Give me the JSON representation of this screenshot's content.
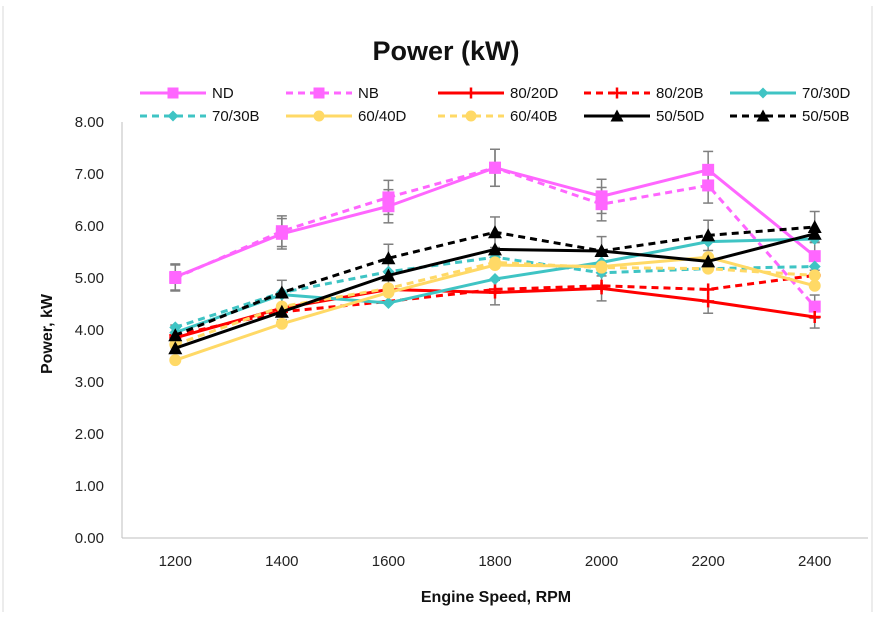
{
  "chart_data": {
    "type": "line",
    "title": "Power (kW)",
    "xlabel": "Engine Speed, RPM",
    "ylabel": "Power, kW",
    "x": [
      1200,
      1400,
      1600,
      1800,
      2000,
      2200,
      2400
    ],
    "x_tick_labels": [
      "1200",
      "1400",
      "1600",
      "1800",
      "2000",
      "2200",
      "2400"
    ],
    "ylim": [
      0,
      8
    ],
    "y_tick_labels": [
      "0.00",
      "1.00",
      "2.00",
      "3.00",
      "4.00",
      "5.00",
      "6.00",
      "7.00",
      "8.00"
    ],
    "grid": false,
    "legend_position": "top",
    "error_bars": true,
    "series": [
      {
        "name": "ND",
        "values": [
          5.02,
          5.85,
          6.38,
          7.12,
          6.57,
          7.08,
          5.42
        ],
        "color": "#ff66ff",
        "dash": "solid",
        "marker": "square"
      },
      {
        "name": "NB",
        "values": [
          5.0,
          5.9,
          6.55,
          7.12,
          6.42,
          6.78,
          4.45
        ],
        "color": "#ff66ff",
        "dash": "dashed",
        "marker": "square"
      },
      {
        "name": "80/20D",
        "values": [
          3.85,
          4.42,
          4.78,
          4.72,
          4.8,
          4.55,
          4.25
        ],
        "color": "#ff0000",
        "dash": "solid",
        "marker": "plus"
      },
      {
        "name": "80/20B",
        "values": [
          3.9,
          4.35,
          4.55,
          4.78,
          4.85,
          4.78,
          5.05
        ],
        "color": "#ff0000",
        "dash": "dashed",
        "marker": "plus"
      },
      {
        "name": "70/30D",
        "values": [
          3.95,
          4.68,
          4.52,
          4.98,
          5.3,
          5.7,
          5.75
        ],
        "color": "#3fc4c4",
        "dash": "solid",
        "marker": "diamond"
      },
      {
        "name": "70/30B",
        "values": [
          4.05,
          4.72,
          5.12,
          5.4,
          5.1,
          5.18,
          5.22
        ],
        "color": "#3fc4c4",
        "dash": "dashed",
        "marker": "diamond"
      },
      {
        "name": "60/40D",
        "values": [
          3.42,
          4.12,
          4.72,
          5.25,
          5.22,
          5.4,
          4.85
        ],
        "color": "#ffd966",
        "dash": "solid",
        "marker": "circle"
      },
      {
        "name": "60/40B",
        "values": [
          3.72,
          4.45,
          4.8,
          5.3,
          5.2,
          5.18,
          5.05
        ],
        "color": "#ffd966",
        "dash": "dashed",
        "marker": "circle"
      },
      {
        "name": "50/50D",
        "values": [
          3.65,
          4.35,
          5.05,
          5.55,
          5.52,
          5.32,
          5.85
        ],
        "color": "#000000",
        "dash": "solid",
        "marker": "triangle"
      },
      {
        "name": "50/50B",
        "values": [
          3.9,
          4.72,
          5.38,
          5.88,
          5.52,
          5.82,
          5.98
        ],
        "color": "#000000",
        "dash": "dashed",
        "marker": "triangle"
      }
    ]
  }
}
